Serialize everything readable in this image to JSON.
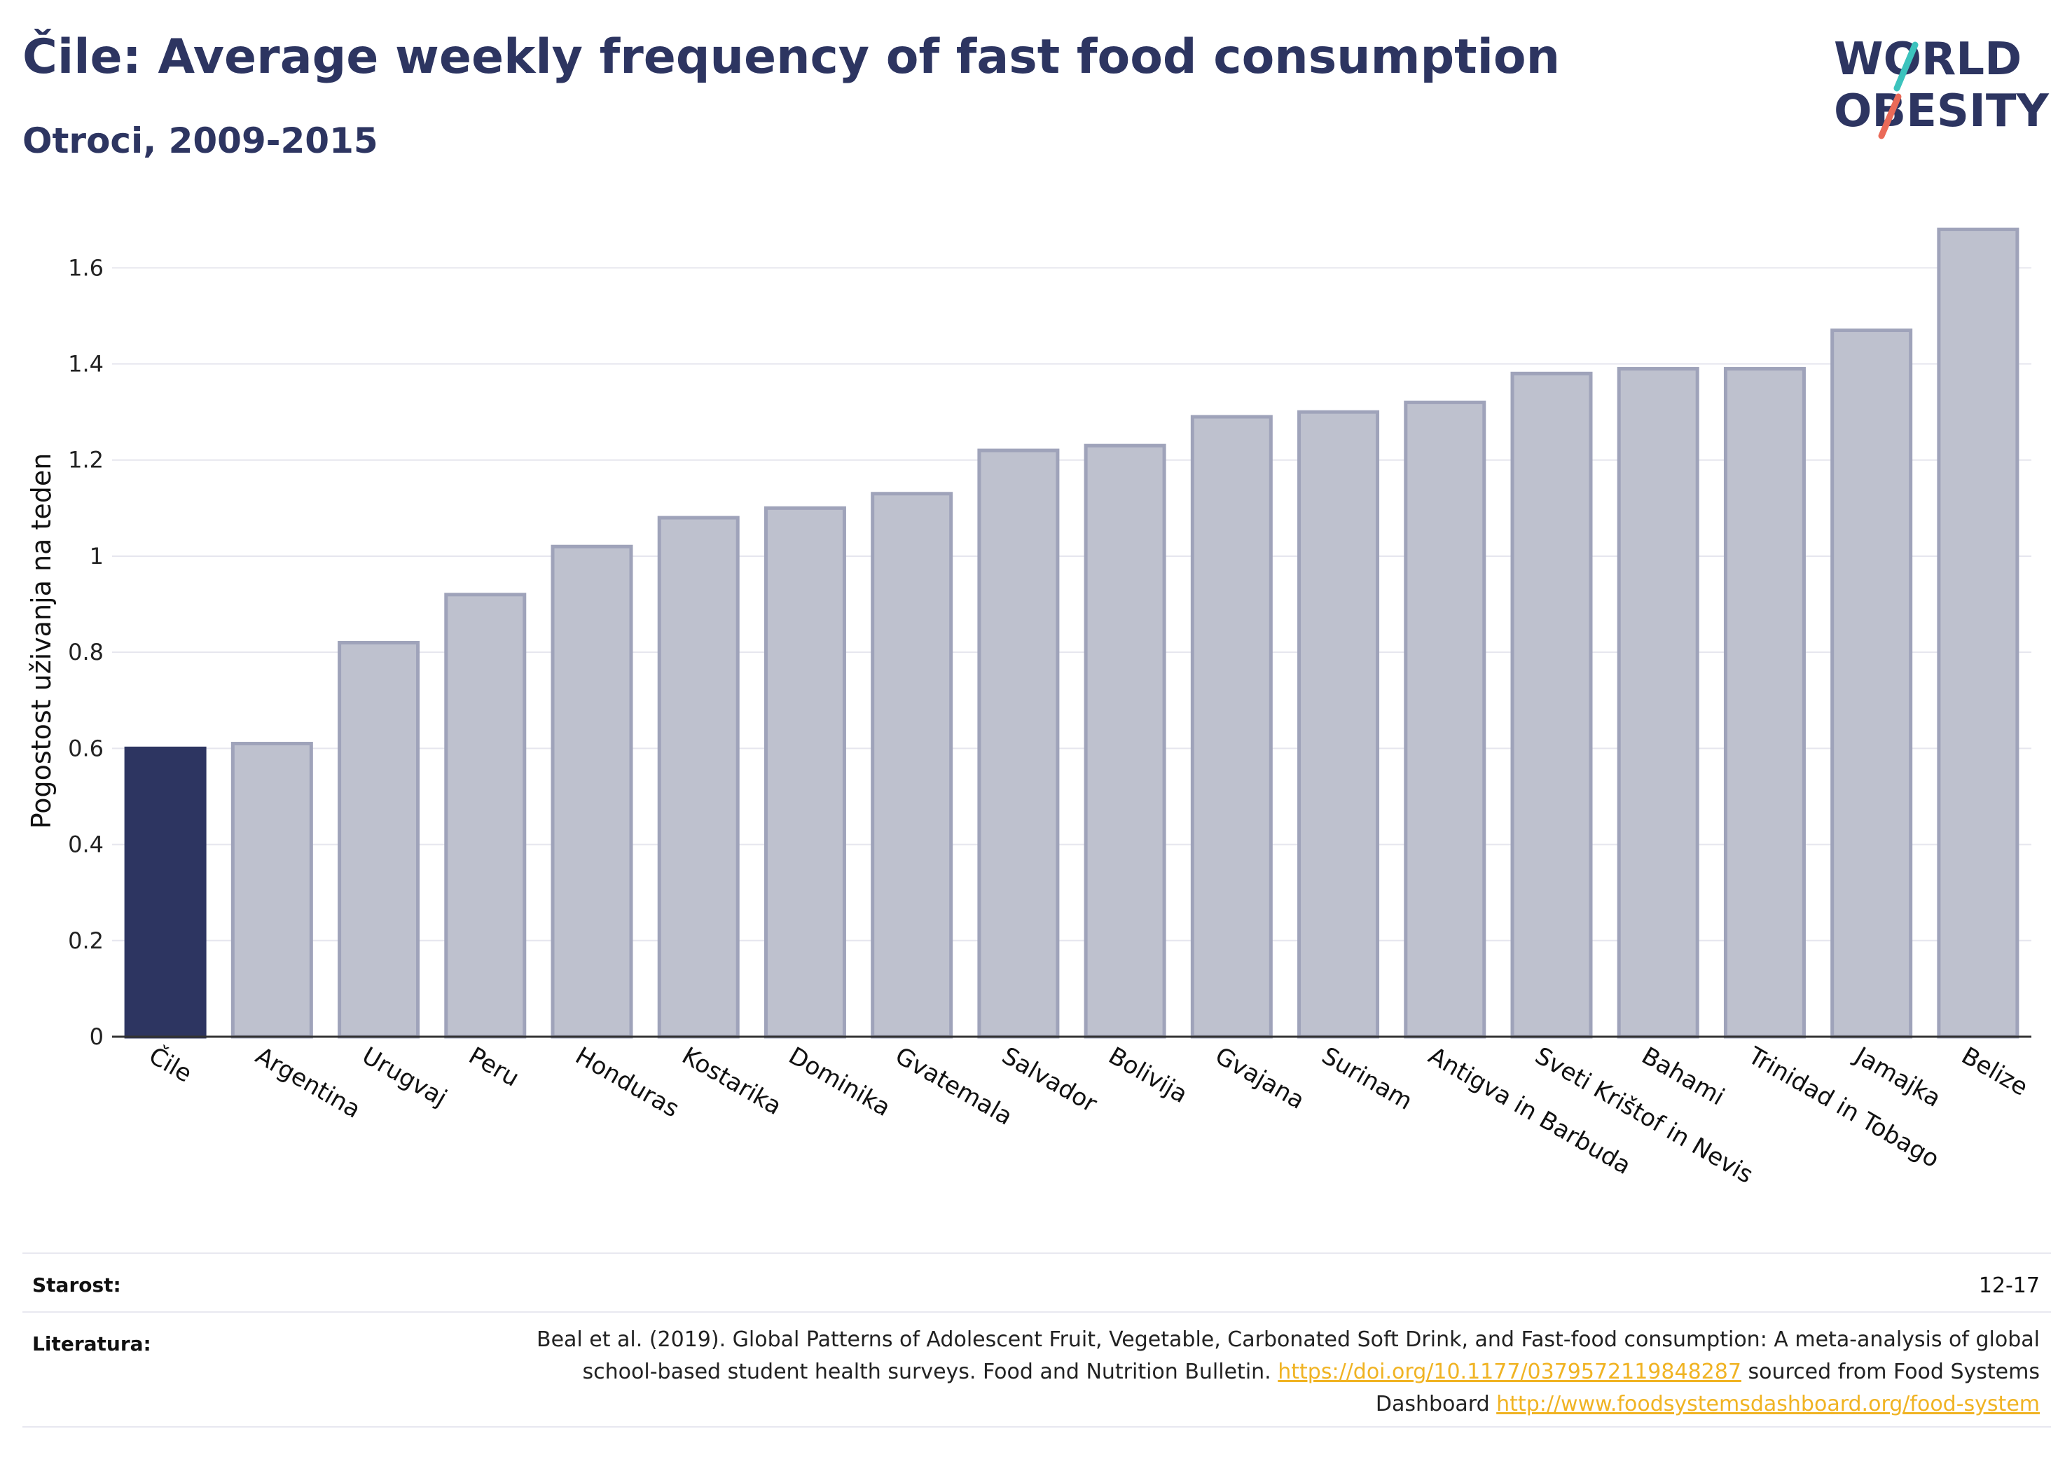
{
  "title": "Čile: Average weekly frequency of fast food consumption",
  "subtitle": "Otroci, 2009-2015",
  "logo": {
    "line1": "WORLD",
    "line2": "OBESITY"
  },
  "chart_data": {
    "type": "bar",
    "ylabel": "Pogostost uživanja na teden",
    "xlabel": "",
    "ylim": [
      0,
      1.72
    ],
    "yticks": [
      0,
      0.2,
      0.4,
      0.6,
      0.8,
      1,
      1.2,
      1.4,
      1.6
    ],
    "ytick_labels": [
      "0",
      "0.2",
      "0.4",
      "0.6",
      "0.8",
      "1",
      "1.2",
      "1.4",
      "1.6"
    ],
    "grid": true,
    "highlight": "Čile",
    "categories": [
      "Čile",
      "Argentina",
      "Urugvaj",
      "Peru",
      "Honduras",
      "Kostarika",
      "Dominika",
      "Gvatemala",
      "Salvador",
      "Bolivija",
      "Gvajana",
      "Surinam",
      "Antigva in Barbuda",
      "Sveti Krištof in Nevis",
      "Bahami",
      "Trinidad in Tobago",
      "Jamajka",
      "Belize"
    ],
    "values": [
      0.6,
      0.61,
      0.82,
      0.92,
      1.02,
      1.08,
      1.1,
      1.13,
      1.22,
      1.23,
      1.29,
      1.3,
      1.32,
      1.38,
      1.39,
      1.39,
      1.47,
      1.68
    ],
    "colors": {
      "highlight": "#2d3561",
      "other_fill": "#bec1ce",
      "other_stroke": "#9fa3ba",
      "axis": "#333333",
      "grid": "#e6e6ee"
    }
  },
  "meta": {
    "age_label": "Starost:",
    "age_value": "12-17",
    "refs_label": "Literatura:",
    "refs_text1": "Beal et al. (2019). Global Patterns of Adolescent Fruit, Vegetable, Carbonated Soft Drink, and Fast-food consumption: A meta-analysis of global school-based student health surveys. Food and Nutrition Bulletin. ",
    "refs_link1": "https://doi.org/10.1177/0379572119848287",
    "refs_text2": " sourced from Food Systems Dashboard ",
    "refs_link2": "http://www.foodsystemsdashboard.org/food-system"
  }
}
